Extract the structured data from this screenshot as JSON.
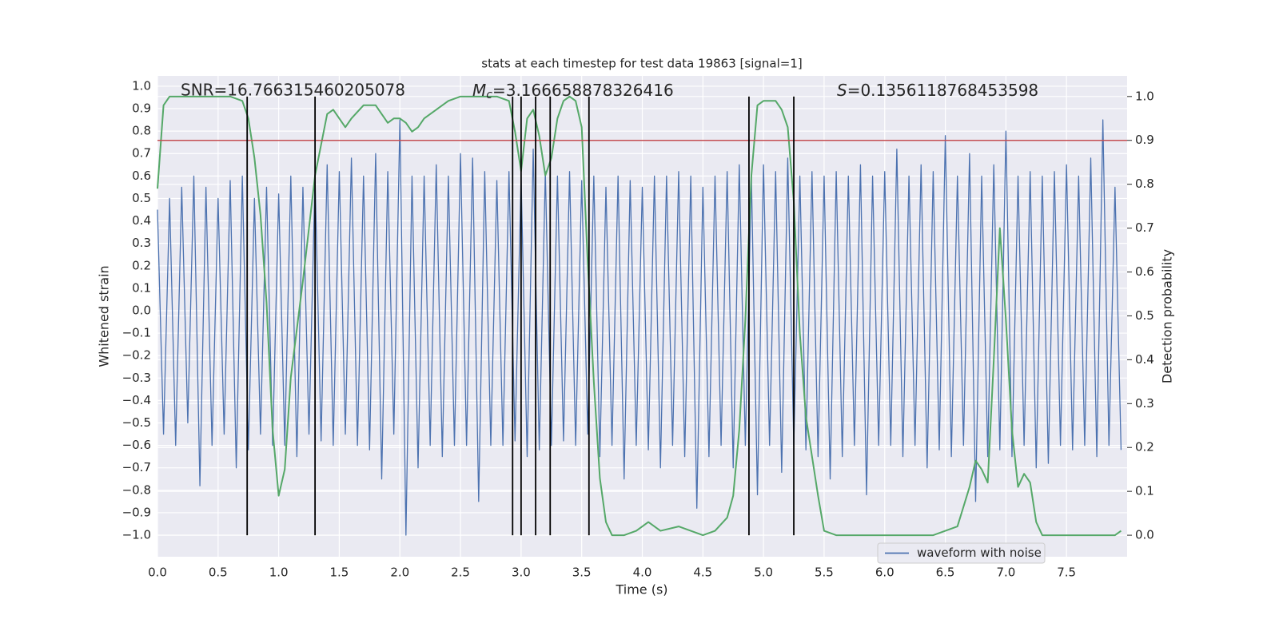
{
  "chart_data": {
    "type": "line",
    "title": "stats at each timestep for test data 19863 [signal=1]",
    "x_label": "Time (s)",
    "y_label": "Whitened strain",
    "y2_label": "Detection probability",
    "xlim": [
      0,
      8.0
    ],
    "ylim": [
      -1.096,
      1.046
    ],
    "y2lim": [
      -0.049,
      1.047
    ],
    "xticks": [
      {
        "value": 0,
        "label": "0.0"
      },
      0.5,
      {
        "value": 1,
        "label": "1.0"
      },
      1.5,
      {
        "value": 2,
        "label": "2.0"
      },
      2.5,
      {
        "value": 3,
        "label": "3.0"
      },
      3.5,
      {
        "value": 4,
        "label": "4.0"
      },
      4.5,
      {
        "value": 5,
        "label": "5.0"
      },
      5.5,
      {
        "value": 6,
        "label": "6.0"
      },
      6.5,
      {
        "value": 7,
        "label": "7.0"
      },
      7.5
    ],
    "yticks": [
      {
        "value": -1,
        "label": "−1.0"
      },
      {
        "value": -0.9,
        "label": "−0.9"
      },
      {
        "value": -0.8,
        "label": "−0.8"
      },
      {
        "value": -0.7,
        "label": "−0.7"
      },
      {
        "value": -0.6,
        "label": "−0.6"
      },
      {
        "value": -0.5,
        "label": "−0.5"
      },
      {
        "value": -0.4,
        "label": "−0.4"
      },
      {
        "value": -0.3,
        "label": "−0.3"
      },
      {
        "value": -0.2,
        "label": "−0.2"
      },
      {
        "value": -0.1,
        "label": "−0.1"
      },
      {
        "value": 0,
        "label": "0.0"
      },
      0.1,
      0.2,
      0.3,
      0.4,
      0.5,
      0.6,
      0.7,
      0.8,
      0.9,
      {
        "value": 1,
        "label": "1.0"
      }
    ],
    "y2ticks": [
      {
        "value": 0,
        "label": "0.0"
      },
      0.1,
      0.2,
      0.3,
      0.4,
      0.5,
      0.6,
      0.7,
      0.8,
      0.9,
      {
        "value": 1,
        "label": "1.0"
      }
    ],
    "grid": true,
    "legend": "lower right",
    "annotations": [
      {
        "text": "SNR=16.766315460205078"
      },
      {
        "symbol": "M",
        "subscript": "c",
        "text": "=3.166658878326416"
      },
      {
        "symbol": "S",
        "text": "=0.1356118768453598"
      }
    ],
    "threshold": {
      "value": 0.9,
      "axis": "y2",
      "color": "#c44e52"
    },
    "vlines": {
      "x": [
        0.74,
        1.3,
        2.93,
        3.0,
        3.12,
        3.24,
        3.56,
        4.88,
        5.25
      ],
      "span": [
        0,
        1
      ],
      "axis": "y2",
      "color": "#000000"
    },
    "series": [
      {
        "name": "waveform with noise",
        "color": "#4c72b0",
        "x": [
          0,
          0.05,
          0.1,
          0.15,
          0.2,
          0.25,
          0.3,
          0.35,
          0.4,
          0.45,
          0.5,
          0.55,
          0.6,
          0.65,
          0.7,
          0.75,
          0.8,
          0.85,
          0.9,
          0.95,
          1,
          1.05,
          1.1,
          1.15,
          1.2,
          1.25,
          1.3,
          1.35,
          1.4,
          1.45,
          1.5,
          1.55,
          1.6,
          1.65,
          1.7,
          1.75,
          1.8,
          1.85,
          1.9,
          1.95,
          2,
          2.05,
          2.1,
          2.15,
          2.2,
          2.25,
          2.3,
          2.35,
          2.4,
          2.45,
          2.5,
          2.55,
          2.6,
          2.65,
          2.7,
          2.75,
          2.8,
          2.85,
          2.9,
          2.95,
          3,
          3.05,
          3.1,
          3.15,
          3.2,
          3.25,
          3.3,
          3.35,
          3.4,
          3.45,
          3.5,
          3.55,
          3.6,
          3.65,
          3.7,
          3.75,
          3.8,
          3.85,
          3.9,
          3.95,
          4,
          4.05,
          4.1,
          4.15,
          4.2,
          4.25,
          4.3,
          4.35,
          4.4,
          4.45,
          4.5,
          4.55,
          4.6,
          4.65,
          4.7,
          4.75,
          4.8,
          4.85,
          4.9,
          4.95,
          5,
          5.05,
          5.1,
          5.15,
          5.2,
          5.25,
          5.3,
          5.35,
          5.4,
          5.45,
          5.5,
          5.55,
          5.6,
          5.65,
          5.7,
          5.75,
          5.8,
          5.85,
          5.9,
          5.95,
          6,
          6.05,
          6.1,
          6.15,
          6.2,
          6.25,
          6.3,
          6.35,
          6.4,
          6.45,
          6.5,
          6.55,
          6.6,
          6.65,
          6.7,
          6.75,
          6.8,
          6.85,
          6.9,
          6.95,
          7,
          7.05,
          7.1,
          7.15,
          7.2,
          7.25,
          7.3,
          7.35,
          7.4,
          7.45,
          7.5,
          7.55,
          7.6,
          7.65,
          7.7,
          7.75,
          7.8,
          7.85,
          7.9,
          7.95
        ],
        "values": [
          0.45,
          -0.55,
          0.5,
          -0.6,
          0.55,
          -0.5,
          0.6,
          -0.78,
          0.55,
          -0.6,
          0.5,
          -0.55,
          0.58,
          -0.7,
          0.6,
          -0.62,
          0.5,
          -0.55,
          0.55,
          -0.6,
          0.52,
          -0.6,
          0.6,
          -0.65,
          0.55,
          -0.55,
          0.6,
          -0.58,
          0.65,
          -0.6,
          0.62,
          -0.55,
          0.68,
          -0.6,
          0.6,
          -0.62,
          0.7,
          -0.75,
          0.62,
          -0.55,
          0.85,
          -1.0,
          0.6,
          -0.7,
          0.6,
          -0.6,
          0.65,
          -0.65,
          0.6,
          -0.6,
          0.7,
          -0.6,
          0.68,
          -0.85,
          0.62,
          -0.6,
          0.58,
          -0.6,
          0.62,
          -0.58,
          0.6,
          -0.65,
          0.72,
          -0.62,
          0.62,
          -0.6,
          0.6,
          -0.58,
          0.62,
          -0.6,
          0.58,
          -0.55,
          0.6,
          -0.65,
          0.55,
          -0.6,
          0.6,
          -0.75,
          0.58,
          -0.6,
          0.55,
          -0.62,
          0.6,
          -0.7,
          0.6,
          -0.6,
          0.62,
          -0.65,
          0.6,
          -0.88,
          0.55,
          -0.65,
          0.6,
          -0.6,
          0.62,
          -0.7,
          0.65,
          -0.6,
          0.6,
          -0.82,
          0.65,
          -0.6,
          0.62,
          -0.72,
          0.68,
          -0.6,
          0.6,
          -0.62,
          0.62,
          -0.65,
          0.6,
          -0.75,
          0.62,
          -0.65,
          0.6,
          -0.6,
          0.65,
          -0.82,
          0.6,
          -0.6,
          0.62,
          -0.6,
          0.72,
          -0.65,
          0.6,
          -0.6,
          0.65,
          -0.7,
          0.62,
          -0.62,
          0.78,
          -0.65,
          0.6,
          -0.6,
          0.7,
          -0.85,
          0.6,
          -0.65,
          0.65,
          -0.62,
          0.8,
          -0.65,
          0.6,
          -0.6,
          0.62,
          -0.7,
          0.6,
          -0.68,
          0.62,
          -0.6,
          0.65,
          -0.62,
          0.6,
          -0.6,
          0.68,
          -0.65,
          0.85,
          -0.6,
          0.55,
          -0.62
        ]
      },
      {
        "color": "#55a868",
        "axis": "y2",
        "x": [
          0,
          0.05,
          0.1,
          0.6,
          0.7,
          0.75,
          0.8,
          0.85,
          0.9,
          0.95,
          1.0,
          1.05,
          1.1,
          1.2,
          1.3,
          1.35,
          1.4,
          1.45,
          1.5,
          1.55,
          1.6,
          1.7,
          1.8,
          1.9,
          1.95,
          2.0,
          2.05,
          2.1,
          2.15,
          2.2,
          2.3,
          2.4,
          2.5,
          2.8,
          2.9,
          2.95,
          3.0,
          3.05,
          3.1,
          3.15,
          3.2,
          3.25,
          3.3,
          3.35,
          3.4,
          3.45,
          3.5,
          3.55,
          3.6,
          3.65,
          3.7,
          3.75,
          3.85,
          3.95,
          4.05,
          4.15,
          4.3,
          4.4,
          4.5,
          4.6,
          4.7,
          4.75,
          4.8,
          4.85,
          4.9,
          4.95,
          5.0,
          5.1,
          5.15,
          5.2,
          5.25,
          5.3,
          5.35,
          5.45,
          5.5,
          5.6,
          6.4,
          6.5,
          6.6,
          6.7,
          6.75,
          6.8,
          6.85,
          6.9,
          6.95,
          7.0,
          7.05,
          7.1,
          7.15,
          7.2,
          7.25,
          7.3,
          7.6,
          7.8,
          7.9,
          7.95
        ],
        "values": [
          0.79,
          0.98,
          1.0,
          1.0,
          0.99,
          0.95,
          0.86,
          0.73,
          0.53,
          0.24,
          0.09,
          0.15,
          0.36,
          0.58,
          0.82,
          0.89,
          0.96,
          0.97,
          0.95,
          0.93,
          0.95,
          0.98,
          0.98,
          0.94,
          0.95,
          0.95,
          0.94,
          0.92,
          0.93,
          0.95,
          0.97,
          0.99,
          1.0,
          1.0,
          0.99,
          0.92,
          0.83,
          0.95,
          0.97,
          0.91,
          0.82,
          0.86,
          0.95,
          0.99,
          1.0,
          0.99,
          0.93,
          0.62,
          0.35,
          0.13,
          0.03,
          0.0,
          0.0,
          0.01,
          0.03,
          0.01,
          0.02,
          0.01,
          0.0,
          0.01,
          0.04,
          0.09,
          0.24,
          0.49,
          0.82,
          0.98,
          0.99,
          0.99,
          0.97,
          0.93,
          0.76,
          0.46,
          0.27,
          0.09,
          0.01,
          0.0,
          0.0,
          0.01,
          0.02,
          0.11,
          0.17,
          0.15,
          0.12,
          0.4,
          0.7,
          0.49,
          0.24,
          0.11,
          0.14,
          0.12,
          0.03,
          0.0,
          0.0,
          0.0,
          0.0,
          0.01
        ]
      }
    ]
  }
}
